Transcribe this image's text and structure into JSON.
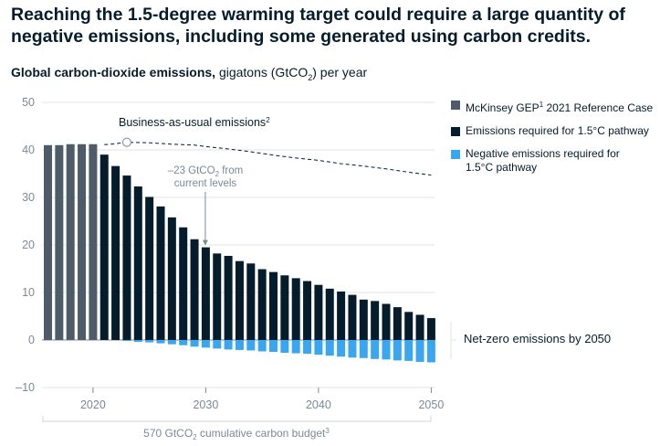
{
  "title": "Reaching the 1.5-degree warming target could require a large quantity of negative emissions, including some generated using carbon credits.",
  "subtitle": {
    "bold": "Global carbon-dioxide emissions,",
    "rest_pre": " gigatons (GtCO",
    "rest_sub": "2",
    "rest_post": ") per year"
  },
  "colors": {
    "reference": "#4d5c68",
    "pathway": "#051c2c",
    "negative": "#3aa6f0",
    "axis": "#7b8a94",
    "grid": "#dfe3e6"
  },
  "legend": [
    {
      "label": "McKinsey GEP",
      "sup": "1",
      "label_after": " 2021 Reference Case",
      "color_key": "reference"
    },
    {
      "label": "Emissions required for 1.5°C pathway",
      "sup": "",
      "label_after": "",
      "color_key": "pathway"
    },
    {
      "label": "Negative emissions required for 1.5°C pathway",
      "sup": "",
      "label_after": "",
      "color_key": "negative"
    }
  ],
  "annotations": {
    "bau": {
      "text": "Business-as-usual emissions",
      "sup": "2"
    },
    "reduction": {
      "line1_pre": "–23 GtCO",
      "line1_sub": "2",
      "line1_post": " from",
      "line2": "current levels"
    },
    "net_zero": "Net-zero emissions by 2050",
    "budget": {
      "pre": "570 GtCO",
      "sub": "2",
      "post": " cumulative carbon budget",
      "sup": "3"
    }
  },
  "chart_data": {
    "type": "bar",
    "title": "Reaching the 1.5-degree warming target could require a large quantity of negative emissions, including some generated using carbon credits.",
    "ylabel": "Global carbon-dioxide emissions, gigatons (GtCO2) per year",
    "ylim": [
      -10,
      50
    ],
    "yticks": [
      -10,
      0,
      10,
      20,
      30,
      40,
      50
    ],
    "xticks": [
      2020,
      2030,
      2040,
      2050
    ],
    "grid": true,
    "legend_position": "right",
    "years": [
      2016,
      2017,
      2018,
      2019,
      2020,
      2021,
      2022,
      2023,
      2024,
      2025,
      2026,
      2027,
      2028,
      2029,
      2030,
      2031,
      2032,
      2033,
      2034,
      2035,
      2036,
      2037,
      2038,
      2039,
      2040,
      2041,
      2042,
      2043,
      2044,
      2045,
      2046,
      2047,
      2048,
      2049,
      2050
    ],
    "series": [
      {
        "name": "McKinsey GEP 2021 Reference Case",
        "type": "bar",
        "values": [
          41,
          41,
          41.2,
          41.2,
          41.2,
          null,
          null,
          null,
          null,
          null,
          null,
          null,
          null,
          null,
          null,
          null,
          null,
          null,
          null,
          null,
          null,
          null,
          null,
          null,
          null,
          null,
          null,
          null,
          null,
          null,
          null,
          null,
          null,
          null,
          null
        ]
      },
      {
        "name": "Emissions required for 1.5°C pathway",
        "type": "bar",
        "values": [
          null,
          null,
          null,
          null,
          null,
          39,
          36.6,
          34.6,
          32.3,
          30.1,
          28.1,
          25.8,
          23.7,
          21.2,
          19.5,
          18.2,
          17.7,
          16.6,
          16.1,
          14.9,
          14.3,
          13.6,
          13,
          12.4,
          11.6,
          10.8,
          10.2,
          9.5,
          8.5,
          8.2,
          7.6,
          6.9,
          5.9,
          5.3,
          4.6
        ]
      },
      {
        "name": "Negative emissions required for 1.5°C pathway",
        "type": "bar",
        "values": [
          null,
          null,
          null,
          null,
          null,
          0,
          0,
          -0.2,
          -0.4,
          -0.5,
          -0.7,
          -0.9,
          -1.1,
          -1.4,
          -1.6,
          -1.8,
          -2,
          -2.1,
          -2.2,
          -2.4,
          -2.5,
          -2.7,
          -2.8,
          -2.9,
          -3.1,
          -3.3,
          -3.5,
          -3.7,
          -3.8,
          -4,
          -4.1,
          -4.3,
          -4.4,
          -4.6,
          -4.7
        ]
      },
      {
        "name": "Business-as-usual emissions",
        "type": "line",
        "x": [
          2021,
          2022,
          2023,
          2025,
          2027,
          2029,
          2030,
          2032,
          2034,
          2036,
          2038,
          2040,
          2042,
          2044,
          2046,
          2048,
          2050
        ],
        "values": [
          41.1,
          41.3,
          41.6,
          41.5,
          41.2,
          41,
          40.7,
          40.2,
          39.6,
          38.9,
          38.3,
          37.8,
          37.1,
          36.6,
          36,
          35.3,
          34.7
        ]
      }
    ]
  }
}
